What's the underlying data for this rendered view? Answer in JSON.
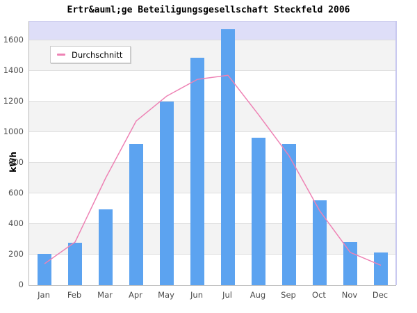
{
  "title": "Ertr&auml;ge Beteiligungsgesellschaft Steckfeld 2006",
  "colors": {
    "bar": "#5ca3f0",
    "line": "#ee82b4",
    "band_white": "#ffffff",
    "band_gray": "#f3f3f3",
    "band_above_max": "#dedef8",
    "gridline": "#dedede",
    "plot_right_border": "#c9c9f0"
  },
  "chart_data": {
    "type": "bar",
    "title": "Ertr&auml;ge Beteiligungsgesellschaft Steckfeld 2006",
    "xlabel": "",
    "ylabel": "kWh",
    "categories": [
      "Jan",
      "Feb",
      "Mar",
      "Apr",
      "May",
      "Jun",
      "Jul",
      "Aug",
      "Sep",
      "Oct",
      "Nov",
      "Dec"
    ],
    "series": [
      {
        "name": "",
        "type": "bar",
        "values": [
          205,
          277,
          495,
          923,
          1200,
          1486,
          1674,
          964,
          923,
          555,
          282,
          214
        ]
      },
      {
        "name": "Durchschnitt",
        "type": "line",
        "values": [
          140,
          282,
          700,
          1073,
          1236,
          1345,
          1372,
          1114,
          845,
          486,
          214,
          130
        ]
      }
    ],
    "ylim": [
      0,
      1723
    ],
    "yticks": [
      0,
      200,
      400,
      600,
      800,
      1000,
      1200,
      1400,
      1600
    ],
    "grid": true,
    "band_step": 200,
    "legend_entries": [
      "Durchschnitt"
    ],
    "legend_position": "top-left"
  }
}
